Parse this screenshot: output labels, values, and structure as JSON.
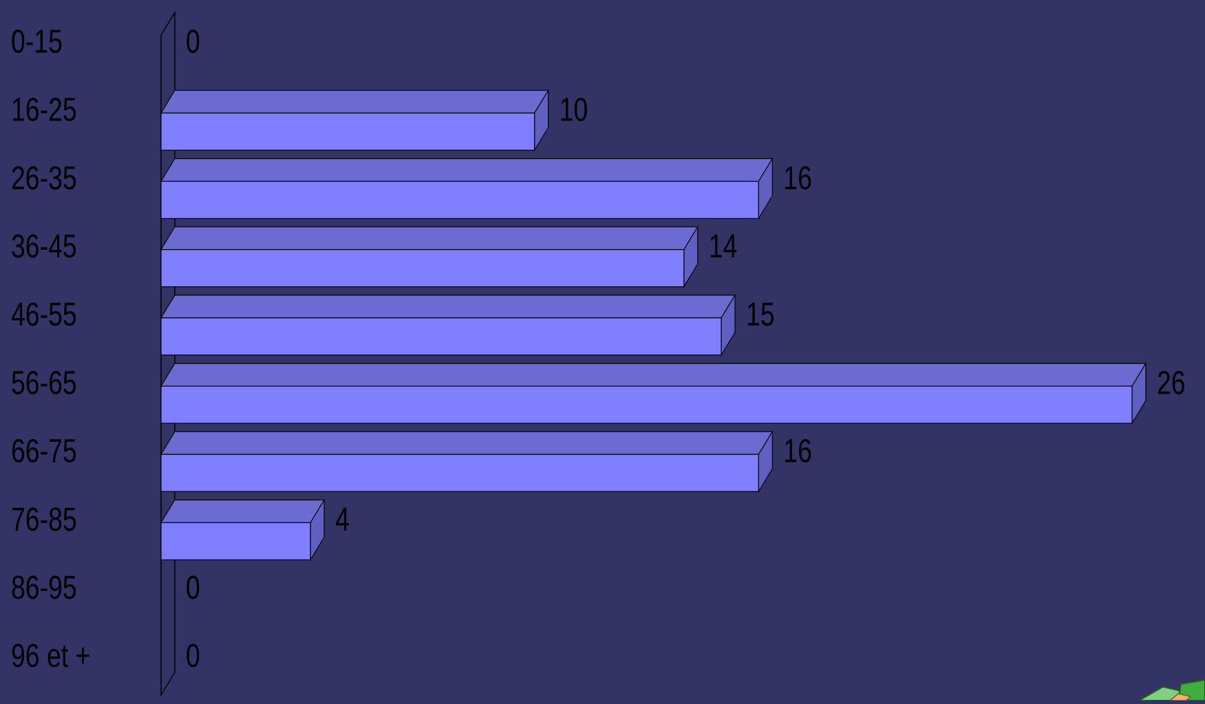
{
  "colors": {
    "background": "#333366",
    "bar_front": "#7f7ffe",
    "bar_top": "#6b6bd1",
    "bar_side": "#6060c0",
    "outline": "#000000",
    "text": "#000000",
    "corner_decoration": "#3fae3f"
  },
  "chart_data": {
    "type": "bar",
    "orientation": "horizontal",
    "style": "3d",
    "title": "",
    "xlabel": "",
    "ylabel": "",
    "categories": [
      "0-15",
      "16-25",
      "26-35",
      "36-45",
      "46-55",
      "56-65",
      "66-75",
      "76-85",
      "86-95",
      "96 et +"
    ],
    "values": [
      0,
      10,
      16,
      14,
      15,
      26,
      16,
      4,
      0,
      0
    ],
    "data_labels": [
      "0",
      "10",
      "16",
      "14",
      "15",
      "26",
      "16",
      "4",
      "0",
      "0"
    ],
    "xlim": [
      0,
      26
    ],
    "grid": false,
    "legend": "none"
  },
  "decorations": {
    "corner_icon": "green-stacked-objects-icon"
  }
}
